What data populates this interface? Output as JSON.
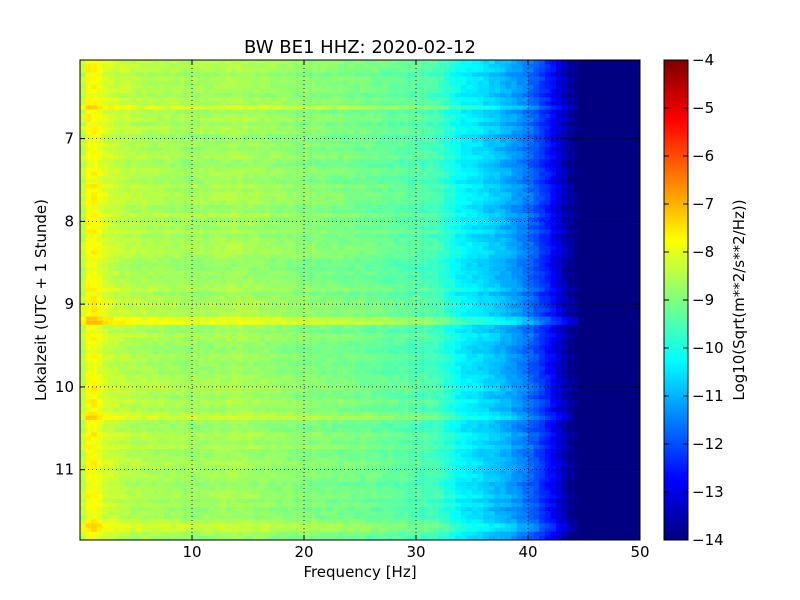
{
  "chart_data": {
    "type": "heatmap",
    "title": "BW BE1 HHZ: 2020-02-12",
    "xlabel": "Frequency [Hz]",
    "ylabel": "Lokalzeit (UTC + 1 Stunde)",
    "xlim": [
      0,
      50
    ],
    "ylim": [
      11.85,
      6.05
    ],
    "y_inverted": true,
    "x_ticks": [
      10,
      20,
      30,
      40,
      50
    ],
    "y_ticks": [
      7,
      8,
      9,
      10,
      11
    ],
    "grid": true,
    "colormap": "jet",
    "colorbar": {
      "label": "Log10(Sqrt(m**2/s**2/Hz))",
      "range": [
        -14,
        -4
      ],
      "ticks": [
        -4,
        -5,
        -6,
        -7,
        -8,
        -9,
        -10,
        -11,
        -12,
        -13,
        -14
      ]
    },
    "spectral_profile": {
      "frequency_hz": [
        0,
        0.5,
        1,
        1.5,
        2,
        3,
        5,
        8,
        10,
        14,
        20,
        25,
        30,
        32,
        34,
        36,
        38,
        40,
        42,
        43,
        44,
        45,
        46,
        50
      ],
      "typical_value": [
        -8.8,
        -7.9,
        -7.7,
        -7.8,
        -8.1,
        -8.3,
        -8.5,
        -8.6,
        -8.7,
        -8.6,
        -8.9,
        -9.1,
        -9.4,
        -9.6,
        -10.3,
        -10.6,
        -11.0,
        -11.6,
        -12.6,
        -13.3,
        -13.9,
        -14,
        -14,
        -14
      ]
    },
    "bright_time_bands": [
      {
        "time": 6.62,
        "strength": 0.6,
        "f_end": 45
      },
      {
        "time": 9.19,
        "strength": 1.0,
        "f_end": 47
      },
      {
        "time": 10.34,
        "strength": 0.45,
        "f_end": 44
      },
      {
        "time": 10.73,
        "strength": 0.5,
        "f_end": 44
      },
      {
        "time": 11.71,
        "strength": 0.45,
        "f_end": 44
      }
    ]
  }
}
